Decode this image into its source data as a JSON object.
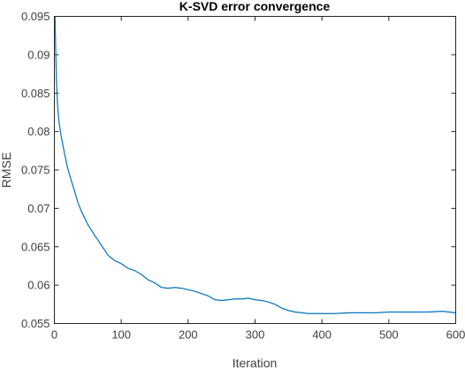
{
  "chart_data": {
    "type": "line",
    "title": "K-SVD error convergence",
    "xlabel": "Iteration",
    "ylabel": "RMSE",
    "xlim": [
      0,
      600
    ],
    "ylim": [
      0.055,
      0.095
    ],
    "xticks": [
      0,
      100,
      200,
      300,
      400,
      500,
      600
    ],
    "yticks": [
      0.055,
      0.06,
      0.065,
      0.07,
      0.075,
      0.08,
      0.085,
      0.09,
      0.095
    ],
    "xtick_labels": [
      "0",
      "100",
      "200",
      "300",
      "400",
      "500",
      "600"
    ],
    "ytick_labels": [
      "0.055",
      "0.06",
      "0.065",
      "0.07",
      "0.075",
      "0.08",
      "0.085",
      "0.09",
      "0.095"
    ],
    "grid": false,
    "legend": "none",
    "series": [
      {
        "color": "#0072BD",
        "x": [
          1,
          2,
          3,
          4,
          5,
          7,
          10,
          15,
          20,
          25,
          30,
          35,
          40,
          45,
          50,
          55,
          60,
          65,
          70,
          75,
          80,
          90,
          100,
          110,
          120,
          130,
          140,
          150,
          160,
          170,
          180,
          190,
          200,
          210,
          220,
          230,
          240,
          250,
          260,
          270,
          280,
          290,
          300,
          310,
          320,
          330,
          340,
          350,
          360,
          370,
          380,
          390,
          400,
          420,
          440,
          460,
          480,
          500,
          520,
          540,
          560,
          580,
          600
        ],
        "y": [
          0.095,
          0.0905,
          0.087,
          0.0848,
          0.0832,
          0.0812,
          0.0795,
          0.0772,
          0.0752,
          0.0737,
          0.0723,
          0.0708,
          0.0697,
          0.0688,
          0.0679,
          0.0672,
          0.0665,
          0.0659,
          0.0652,
          0.0646,
          0.0639,
          0.0632,
          0.0628,
          0.0622,
          0.0619,
          0.0614,
          0.0607,
          0.0603,
          0.0597,
          0.0596,
          0.0597,
          0.0596,
          0.0594,
          0.0592,
          0.0589,
          0.0586,
          0.0581,
          0.058,
          0.0581,
          0.0582,
          0.0582,
          0.0583,
          0.0581,
          0.058,
          0.0578,
          0.0575,
          0.057,
          0.0567,
          0.0565,
          0.0564,
          0.0563,
          0.0563,
          0.0563,
          0.0563,
          0.0564,
          0.0564,
          0.0564,
          0.0565,
          0.0565,
          0.0565,
          0.0565,
          0.0566,
          0.0564
        ]
      }
    ]
  }
}
